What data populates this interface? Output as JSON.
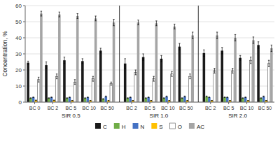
{
  "chart_data": {
    "type": "bar",
    "ylabel": "Concentration, %",
    "categories": [
      "BC 0",
      "BC 2",
      "BC 5",
      "BC 10",
      "BC 50",
      "BC 2",
      "BC 5",
      "BC 10",
      "BC 50",
      "BC 2",
      "BC 5",
      "BC 10",
      "BC 50"
    ],
    "category_groups": [
      "SIR 0.5",
      "SIR 0.5",
      "SIR 0.5",
      "SIR 0.5",
      "SIR 0.5",
      "SIR 1.0",
      "SIR 1.0",
      "SIR 1.0",
      "SIR 1.0",
      "SIR 2.0",
      "SIR 2.0",
      "SIR 2.0",
      "SIR 2.0"
    ],
    "series": [
      {
        "name": "C",
        "color": "#1a1a1a",
        "values": [
          24.5,
          23.0,
          26.0,
          25.5,
          32.0,
          24.0,
          28.0,
          27.0,
          34.5,
          30.5,
          32.0,
          27.5,
          35.5
        ],
        "errors": [
          1.0,
          2.0,
          2.0,
          1.5,
          1.5,
          3.0,
          2.0,
          2.0,
          2.0,
          2.0,
          2.0,
          1.5,
          2.0
        ]
      },
      {
        "name": "H",
        "color": "#70ad47",
        "values": [
          2.5,
          2.5,
          2.5,
          2.5,
          2.0,
          2.5,
          2.5,
          2.5,
          2.5,
          3.5,
          3.0,
          2.5,
          2.5
        ],
        "errors": [
          0.2,
          0.2,
          0.2,
          0.2,
          0.2,
          0.2,
          0.2,
          0.2,
          0.2,
          0.3,
          0.2,
          0.2,
          0.2
        ]
      },
      {
        "name": "N",
        "color": "#4472c4",
        "values": [
          3.0,
          3.0,
          3.0,
          3.0,
          3.5,
          3.0,
          3.0,
          3.5,
          3.5,
          3.0,
          3.0,
          3.0,
          3.5
        ],
        "errors": [
          0.2,
          0.2,
          0.2,
          0.2,
          0.3,
          0.2,
          0.2,
          0.3,
          0.3,
          0.2,
          0.2,
          0.2,
          0.3
        ]
      },
      {
        "name": "S",
        "color": "#ffc000",
        "values": [
          1.2,
          1.2,
          1.0,
          1.0,
          1.0,
          1.0,
          1.0,
          1.0,
          1.0,
          1.0,
          1.0,
          1.0,
          1.0
        ],
        "errors": [
          0.1,
          0.1,
          0.1,
          0.1,
          0.1,
          0.1,
          0.1,
          0.1,
          0.1,
          0.1,
          0.1,
          0.1,
          0.1
        ]
      },
      {
        "name": "O",
        "color": "#ffffff",
        "values": [
          14.0,
          16.0,
          12.5,
          14.5,
          11.5,
          18.5,
          14.5,
          17.5,
          16.0,
          19.5,
          19.5,
          26.0,
          24.0
        ],
        "errors": [
          1.5,
          1.5,
          1.5,
          1.5,
          1.0,
          1.5,
          1.5,
          1.5,
          1.5,
          1.5,
          1.5,
          2.0,
          2.0
        ]
      },
      {
        "name": "AC",
        "color": "#a5a5a5",
        "values": [
          55.0,
          54.5,
          53.5,
          52.0,
          49.5,
          49.5,
          49.0,
          47.0,
          41.5,
          41.5,
          40.0,
          38.5,
          33.5
        ],
        "errors": [
          1.5,
          1.5,
          1.5,
          1.5,
          2.0,
          1.5,
          1.5,
          1.5,
          2.0,
          2.0,
          2.0,
          2.0,
          2.0
        ]
      }
    ],
    "ylim": [
      0,
      60
    ],
    "yticks": [
      0,
      10,
      20,
      30,
      40,
      50,
      60
    ],
    "grid": true,
    "legend": "bottom"
  }
}
